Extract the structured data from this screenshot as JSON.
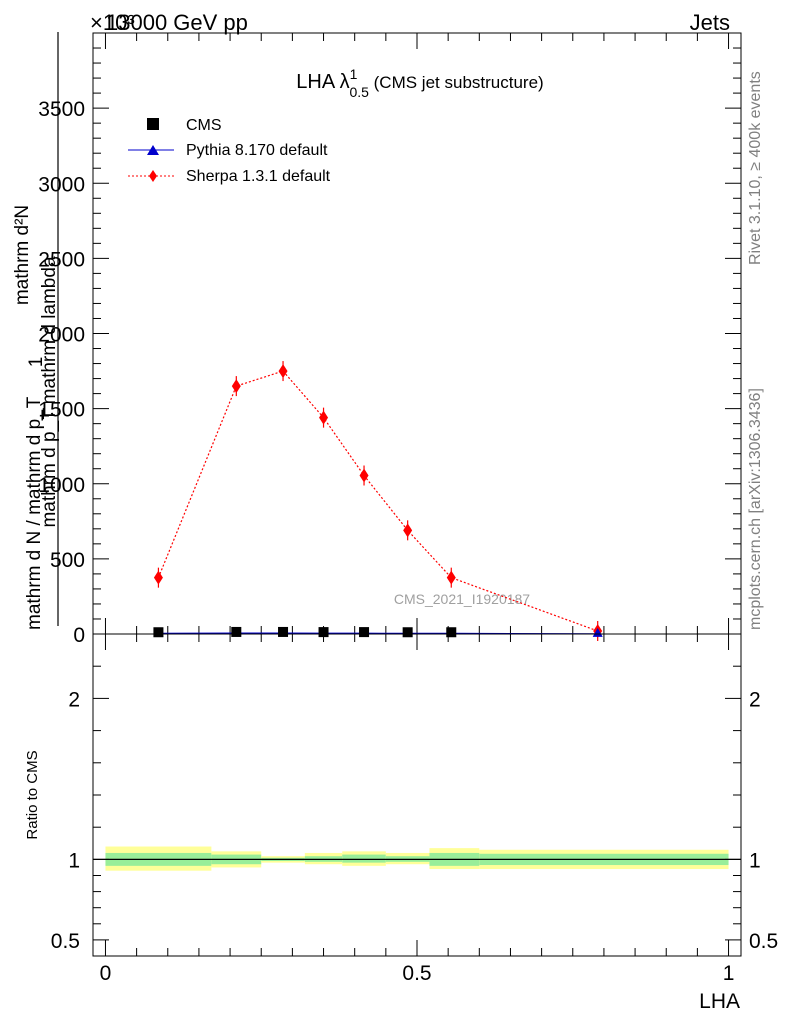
{
  "header": {
    "left_label": "13000 GeV pp",
    "right_label": "Jets",
    "exponent_label": "×10³"
  },
  "side_labels": {
    "rivet": "Rivet 3.1.10, ≥ 400k events",
    "mcplots": "mcplots.cern.ch [arXiv:1306.3436]"
  },
  "watermark": "CMS_2021_I1920187",
  "colors": {
    "cms": "#000000",
    "pythia": "#0000cc",
    "sherpa": "#ff0000",
    "band_outer": "#ffff99",
    "band_inner": "#99ee99"
  },
  "chart_data": [
    {
      "type": "line",
      "title_main": "LHA λ",
      "title_sup": "1",
      "title_sub": "0.5",
      "title_suffix": " (CMS jet substructure)",
      "ylabel_top": "mathrm d²N",
      "ylabel_top_den": "mathrm d p_T mathrm d lambda",
      "ylabel_one": "1",
      "ylabel_bottom": "mathrm d N / mathrm d p_T",
      "xlim": [
        -0.02,
        1.02
      ],
      "ylim": [
        0,
        4000
      ],
      "y_ticks": [
        0,
        500,
        1000,
        1500,
        2000,
        2500,
        3000,
        3500
      ],
      "legend_position": "top-left",
      "series": [
        {
          "name": "CMS",
          "marker": "square",
          "x": [
            0.085,
            0.21,
            0.285,
            0.35,
            0.415,
            0.485,
            0.555
          ],
          "y": [
            5,
            7,
            7,
            6,
            6,
            5,
            5
          ]
        },
        {
          "name": "Pythia 8.170 default",
          "marker": "triangle",
          "x": [
            0.085,
            0.21,
            0.285,
            0.35,
            0.415,
            0.485,
            0.555,
            0.79
          ],
          "y": [
            4,
            6,
            6,
            5,
            5,
            4,
            4,
            1
          ]
        },
        {
          "name": "Sherpa 1.3.1 default",
          "marker": "diamond",
          "x": [
            0.085,
            0.21,
            0.285,
            0.35,
            0.415,
            0.485,
            0.555,
            0.79
          ],
          "y": [
            375,
            1650,
            1750,
            1440,
            1055,
            690,
            375,
            20
          ]
        }
      ]
    },
    {
      "type": "area",
      "ylabel": "Ratio to CMS",
      "xlabel": "LHA",
      "xlim": [
        -0.02,
        1.02
      ],
      "ylim": [
        0.4,
        2.4
      ],
      "y_ticks": [
        0.5,
        1,
        2
      ],
      "y_tick_labels": [
        "0.5",
        "1",
        "2"
      ],
      "x_ticks": [
        0,
        0.5,
        1
      ],
      "x_tick_labels": [
        "0",
        "0.5",
        "1"
      ],
      "bands": [
        {
          "x0": 0.0,
          "x1": 0.17,
          "outer": [
            0.93,
            1.08
          ],
          "inner": [
            0.96,
            1.04
          ]
        },
        {
          "x0": 0.17,
          "x1": 0.25,
          "outer": [
            0.95,
            1.05
          ],
          "inner": [
            0.97,
            1.03
          ]
        },
        {
          "x0": 0.25,
          "x1": 0.32,
          "outer": [
            0.98,
            1.02
          ],
          "inner": [
            0.99,
            1.01
          ]
        },
        {
          "x0": 0.32,
          "x1": 0.38,
          "outer": [
            0.97,
            1.04
          ],
          "inner": [
            0.985,
            1.02
          ]
        },
        {
          "x0": 0.38,
          "x1": 0.45,
          "outer": [
            0.96,
            1.05
          ],
          "inner": [
            0.98,
            1.03
          ]
        },
        {
          "x0": 0.45,
          "x1": 0.52,
          "outer": [
            0.97,
            1.04
          ],
          "inner": [
            0.985,
            1.02
          ]
        },
        {
          "x0": 0.52,
          "x1": 0.6,
          "outer": [
            0.94,
            1.07
          ],
          "inner": [
            0.96,
            1.04
          ]
        },
        {
          "x0": 0.6,
          "x1": 1.0,
          "outer": [
            0.94,
            1.06
          ],
          "inner": [
            0.965,
            1.035
          ]
        }
      ]
    }
  ]
}
